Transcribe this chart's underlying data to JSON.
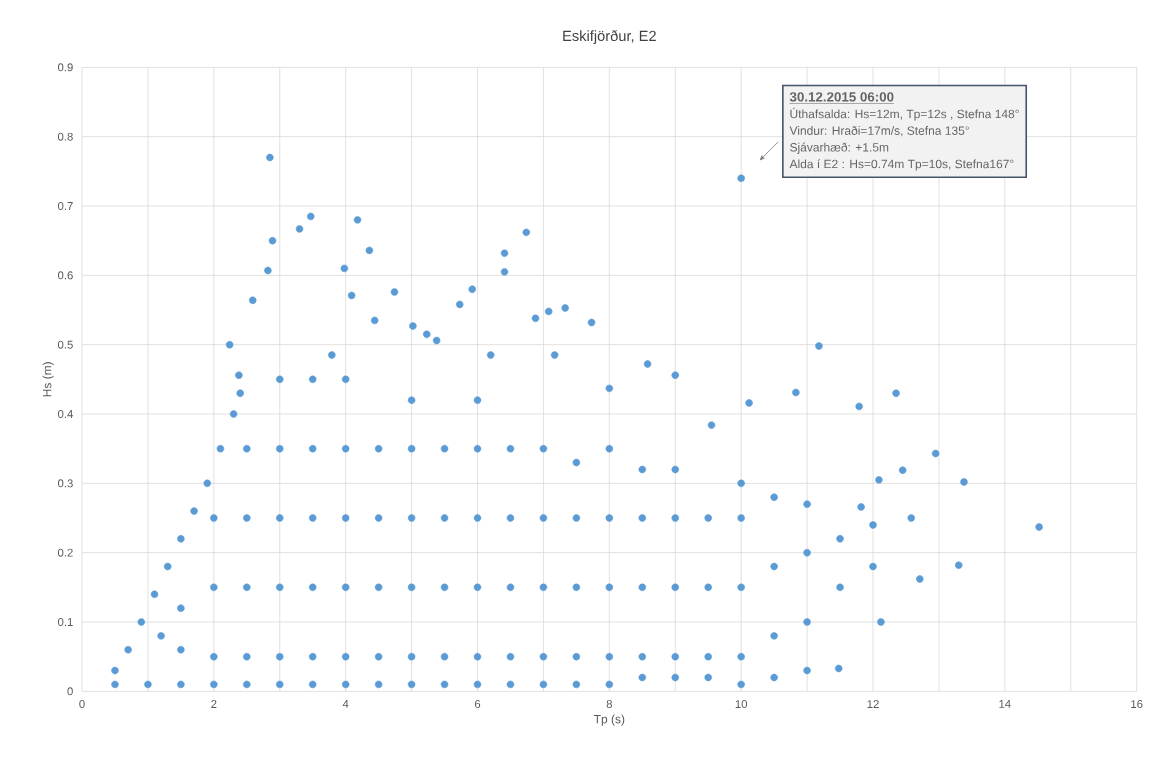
{
  "chart_data": {
    "type": "scatter",
    "title": "Eskifjörður, E2",
    "xlabel": "Tp (s)",
    "ylabel": "Hs (m)",
    "xlim": [
      0,
      16
    ],
    "ylim": [
      0,
      0.9
    ],
    "xticks": [
      0,
      {
        "value": 1,
        "label": null
      },
      2,
      {
        "value": 3,
        "label": null
      },
      4,
      {
        "value": 5,
        "label": null
      },
      6,
      {
        "value": 7,
        "label": null
      },
      8,
      {
        "value": 9,
        "label": null
      },
      10,
      {
        "value": 11,
        "label": null
      },
      12,
      {
        "value": 13,
        "label": null
      },
      14,
      {
        "value": 15,
        "label": null
      },
      16
    ],
    "yticks": [
      0,
      0.1,
      0.2,
      0.3,
      0.4,
      0.5,
      0.6,
      0.7,
      0.8,
      0.9
    ],
    "grid": true,
    "marker": "circle",
    "color": "#5b9bd5",
    "x": [
      0.5,
      0.5,
      0.7,
      0.9,
      1.1,
      1.3,
      1.5,
      1.7,
      1.9,
      2.1,
      2.3,
      2.4,
      1,
      1.5,
      2,
      2.5,
      3,
      3.5,
      4,
      4.5,
      5,
      5.5,
      6,
      6.5,
      7,
      7.5,
      8,
      8.5,
      9,
      9.5,
      10,
      10.5,
      11,
      1.2,
      1.5,
      1.5,
      2,
      2,
      2,
      2.5,
      2.5,
      2.5,
      2.5,
      3,
      3,
      3,
      3,
      3,
      3.5,
      3.5,
      3.5,
      3.5,
      3.5,
      4,
      4,
      4,
      4,
      4,
      4.5,
      4.5,
      4.5,
      4.5,
      5,
      5,
      5,
      5,
      5,
      5.5,
      5.5,
      5.5,
      5.5,
      6,
      6,
      6,
      6,
      6,
      6.5,
      6.5,
      6.5,
      6.5,
      7,
      7,
      7,
      7,
      7.5,
      7.5,
      7.5,
      7.5,
      8,
      8,
      8,
      8,
      8.5,
      8.5,
      8.5,
      8.5,
      9,
      9,
      9,
      9,
      9.5,
      9.5,
      9.5,
      10,
      10,
      10,
      10,
      10.5,
      10.5,
      10.5,
      11,
      11,
      11,
      11.5,
      11.5,
      12,
      12,
      2.85,
      10,
      3.47,
      4.18,
      2.89,
      3.3,
      4.36,
      6.74,
      6.41,
      5.92,
      4.74,
      7.33,
      7.08,
      6.88,
      7.73,
      5.73,
      6.41,
      6.2,
      7.17,
      11.18,
      8.0,
      8.58,
      9.0,
      9.55,
      10.12,
      10.83,
      11.79,
      12.35,
      12.45,
      13.38,
      14.52,
      13.3,
      12.58,
      12.71,
      12.12,
      11.48,
      12.95,
      11.82,
      12.09,
      2.59,
      2.82,
      2.24,
      2.38,
      3.98,
      4.09,
      4.44,
      5.02,
      5.23,
      5.38,
      3.79
    ],
    "values": [
      0.01,
      0.03,
      0.06,
      0.1,
      0.14,
      0.18,
      0.22,
      0.26,
      0.3,
      0.35,
      0.4,
      0.43,
      0.01,
      0.01,
      0.01,
      0.01,
      0.01,
      0.01,
      0.01,
      0.01,
      0.01,
      0.01,
      0.01,
      0.01,
      0.01,
      0.01,
      0.01,
      0.02,
      0.02,
      0.02,
      0.01,
      0.02,
      0.03,
      0.08,
      0.12,
      0.06,
      0.05,
      0.15,
      0.25,
      0.05,
      0.15,
      0.25,
      0.35,
      0.05,
      0.15,
      0.25,
      0.35,
      0.45,
      0.05,
      0.15,
      0.25,
      0.35,
      0.45,
      0.05,
      0.15,
      0.25,
      0.35,
      0.45,
      0.05,
      0.15,
      0.25,
      0.35,
      0.05,
      0.15,
      0.25,
      0.35,
      0.42,
      0.05,
      0.15,
      0.25,
      0.35,
      0.05,
      0.15,
      0.25,
      0.35,
      0.42,
      0.05,
      0.15,
      0.25,
      0.35,
      0.05,
      0.15,
      0.25,
      0.35,
      0.05,
      0.15,
      0.25,
      0.33,
      0.05,
      0.15,
      0.25,
      0.35,
      0.05,
      0.15,
      0.25,
      0.32,
      0.05,
      0.15,
      0.25,
      0.32,
      0.05,
      0.15,
      0.25,
      0.05,
      0.15,
      0.25,
      0.3,
      0.08,
      0.18,
      0.28,
      0.1,
      0.2,
      0.27,
      0.15,
      0.22,
      0.18,
      0.24,
      0.77,
      0.74,
      0.685,
      0.68,
      0.65,
      0.667,
      0.636,
      0.662,
      0.632,
      0.58,
      0.576,
      0.553,
      0.548,
      0.538,
      0.532,
      0.558,
      0.605,
      0.485,
      0.485,
      0.498,
      0.437,
      0.472,
      0.456,
      0.384,
      0.416,
      0.431,
      0.411,
      0.43,
      0.319,
      0.302,
      0.237,
      0.182,
      0.25,
      0.162,
      0.1,
      0.033,
      0.343,
      0.266,
      0.305,
      0.564,
      0.607,
      0.5,
      0.456,
      0.61,
      0.571,
      0.535,
      0.527,
      0.515,
      0.506,
      0.485
    ],
    "annotations": [
      "30.12.2015 06:00",
      "Úthafsalda: Hs=12m, Tp=12s , Stefna 148°",
      "Vindur: Hraði=17m/s, Stefna 135°",
      "Sjávarhæð: +1.5m",
      "Alda í E2 : Hs=0.74m Tp=10s, Stefna167°"
    ]
  }
}
